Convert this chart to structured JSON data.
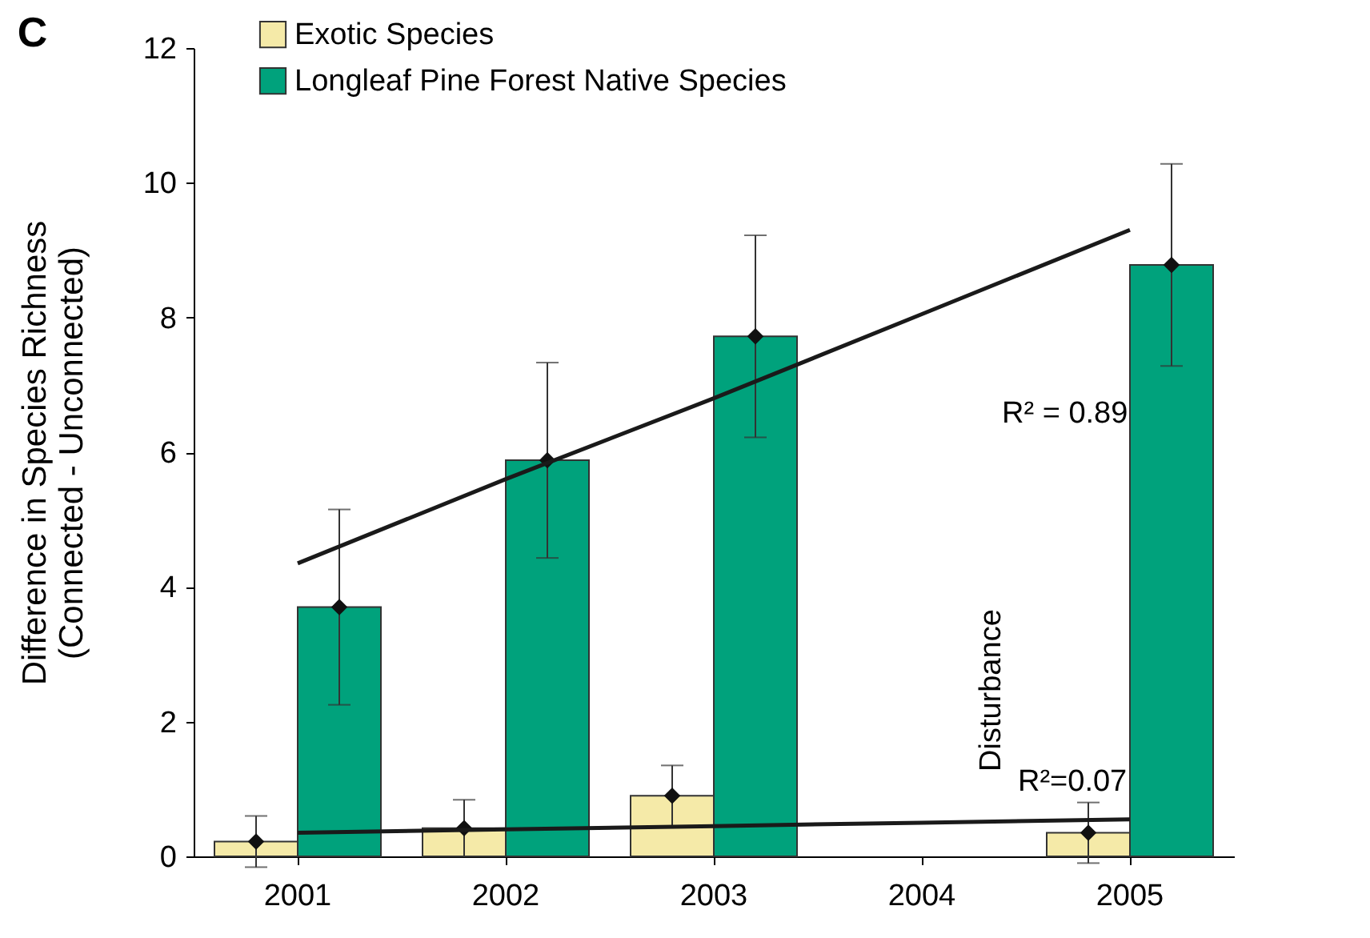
{
  "chart_data": {
    "type": "bar",
    "categories": [
      "2001",
      "2002",
      "2003",
      "2004",
      "2005"
    ],
    "ylabel": "Difference in Species Richness",
    "subtitle": "(Connected - Unconnected)",
    "ylim": [
      0,
      12
    ],
    "yticks": [
      0,
      2,
      4,
      6,
      8,
      10,
      12
    ],
    "grid": false,
    "legend": "top left",
    "series": [
      {
        "name": "Exotic Species",
        "color": "#f5eaa8",
        "values": [
          0.22,
          0.42,
          0.9,
          null,
          0.35
        ],
        "errors": [
          0.38,
          0.42,
          0.45,
          null,
          0.45
        ]
      },
      {
        "name": "Longleaf Pine Forest Native Species",
        "color": "#00a27c",
        "values": [
          3.7,
          5.88,
          7.72,
          null,
          8.78
        ],
        "errors": [
          1.45,
          1.45,
          1.5,
          null,
          1.5
        ]
      },
      {
        "type": "scatter",
        "color": "#111111",
        "marker": "diamond",
        "values": [
          0.22,
          0.42,
          0.9,
          null,
          0.35
        ]
      },
      {
        "type": "scatter",
        "color": "#111111",
        "marker": "diamond",
        "values": [
          3.7,
          5.88,
          7.72,
          null,
          8.78
        ]
      },
      {
        "type": "line",
        "color": "#1a1a1a",
        "values": [
          0.35,
          0.4,
          0.45,
          0.5,
          0.55
        ]
      },
      {
        "type": "line",
        "color": "#1a1a1a",
        "values": [
          4.35,
          5.6,
          6.8,
          8.05,
          9.3
        ]
      }
    ],
    "annotations": [
      "C",
      "R² = 0.89",
      "R²=0.07",
      "Disturbance"
    ]
  }
}
